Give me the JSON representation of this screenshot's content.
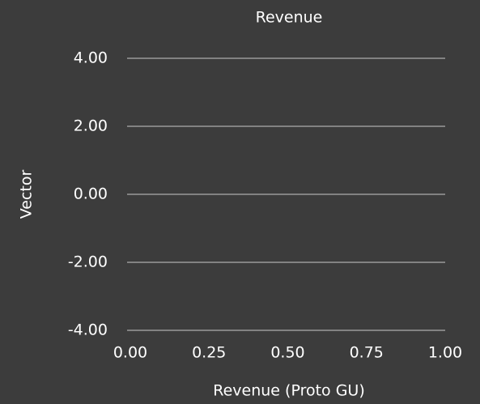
{
  "chart_data": {
    "type": "line",
    "title": "Revenue",
    "x_label": "Revenue (Proto GU)",
    "y_label": "Vector",
    "xlim": [
      0,
      1
    ],
    "xticks": [
      {
        "value": 0,
        "label": "0.00"
      },
      {
        "value": 0.25,
        "label": "0.25"
      },
      {
        "value": 0.5,
        "label": "0.50"
      },
      {
        "value": 0.75,
        "label": "0.75"
      },
      {
        "value": 1,
        "label": "1.00"
      }
    ],
    "ylim": [
      -4,
      4
    ],
    "yticks": [
      {
        "value": -4,
        "label": "-4.00"
      },
      {
        "value": -2,
        "label": "-2.00"
      },
      {
        "value": 0,
        "label": "0.00"
      },
      {
        "value": 2,
        "label": "2.00"
      },
      {
        "value": 4,
        "label": "4.00"
      }
    ],
    "grid": true
  }
}
